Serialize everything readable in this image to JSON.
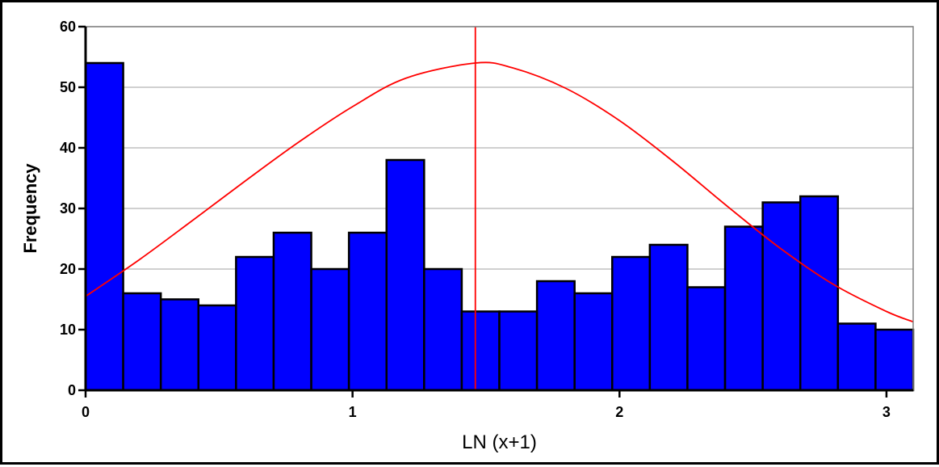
{
  "chart_data": {
    "type": "bar",
    "title": "",
    "xlabel": "LN (x+1)",
    "ylabel": "Frequency",
    "xlim": [
      0,
      3.1
    ],
    "ylim": [
      0,
      60
    ],
    "x_ticks": [
      "0",
      "1",
      "2",
      "3"
    ],
    "y_ticks": [
      "0",
      "10",
      "20",
      "30",
      "40",
      "50",
      "60"
    ],
    "bin_width": 0.1409,
    "bins": [
      {
        "x_start": 0.0,
        "value": 54
      },
      {
        "x_start": 0.1409,
        "value": 16
      },
      {
        "x_start": 0.2818,
        "value": 15
      },
      {
        "x_start": 0.4227,
        "value": 14
      },
      {
        "x_start": 0.5636,
        "value": 22
      },
      {
        "x_start": 0.7045,
        "value": 26
      },
      {
        "x_start": 0.8455,
        "value": 20
      },
      {
        "x_start": 0.9864,
        "value": 26
      },
      {
        "x_start": 1.1273,
        "value": 38
      },
      {
        "x_start": 1.2682,
        "value": 20
      },
      {
        "x_start": 1.4091,
        "value": 13
      },
      {
        "x_start": 1.55,
        "value": 13
      },
      {
        "x_start": 1.6909,
        "value": 18
      },
      {
        "x_start": 1.8318,
        "value": 16
      },
      {
        "x_start": 1.9727,
        "value": 22
      },
      {
        "x_start": 2.1136,
        "value": 24
      },
      {
        "x_start": 2.2545,
        "value": 17
      },
      {
        "x_start": 2.3955,
        "value": 27
      },
      {
        "x_start": 2.5364,
        "value": 31
      },
      {
        "x_start": 2.6773,
        "value": 32
      },
      {
        "x_start": 2.8182,
        "value": 11
      },
      {
        "x_start": 2.9591,
        "value": 10
      }
    ],
    "normal_curve": {
      "mean": 1.46,
      "peak": 54,
      "points": [
        {
          "x": 0.0,
          "y": 15.5
        },
        {
          "x": 0.2,
          "y": 21.5
        },
        {
          "x": 0.4,
          "y": 28.0
        },
        {
          "x": 0.6,
          "y": 34.6
        },
        {
          "x": 0.8,
          "y": 41.0
        },
        {
          "x": 1.0,
          "y": 46.8
        },
        {
          "x": 1.2,
          "y": 51.5
        },
        {
          "x": 1.46,
          "y": 54.0
        },
        {
          "x": 1.6,
          "y": 53.2
        },
        {
          "x": 1.8,
          "y": 49.8
        },
        {
          "x": 2.0,
          "y": 44.5
        },
        {
          "x": 2.2,
          "y": 37.8
        },
        {
          "x": 2.4,
          "y": 30.5
        },
        {
          "x": 2.6,
          "y": 23.5
        },
        {
          "x": 2.8,
          "y": 17.5
        },
        {
          "x": 3.0,
          "y": 13.0
        },
        {
          "x": 3.1,
          "y": 11.3
        }
      ]
    },
    "mean_line_x": 1.46,
    "gridlines_y": true,
    "colors": {
      "bar_fill": "#0000ff",
      "bar_stroke": "#000000",
      "curve": "#ff0000",
      "mean_line": "#ff0000",
      "grid": "#c0c0c0",
      "plot_border": "#808080"
    }
  }
}
